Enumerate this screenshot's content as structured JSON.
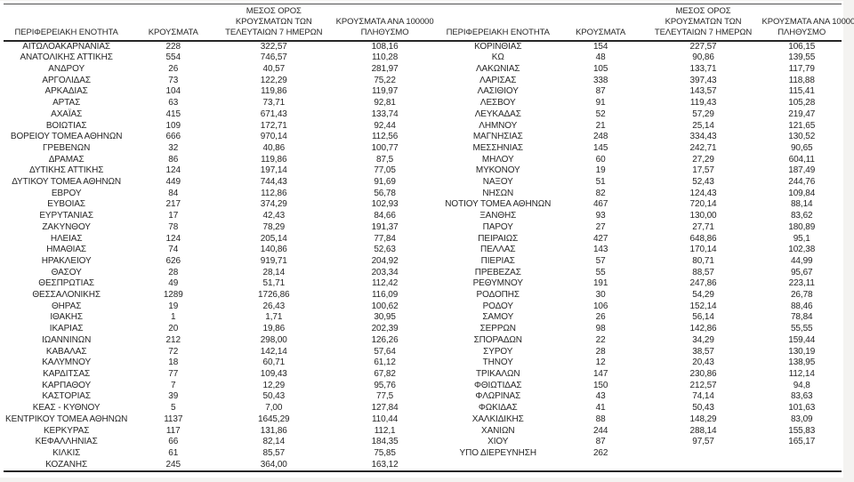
{
  "page": {
    "background_color": "#f4f3f1",
    "panel_color": "#ffffff",
    "rule_color": "#262626",
    "top_rule_color": "#4f4f4f",
    "text_color": "#262626"
  },
  "table": {
    "headers": {
      "region": "ΠΕΡΙΦΕΡΕΙΑΚΗ ΕΝΟΤΗΤΑ",
      "cases": "ΚΡΟΥΣΜΑΤΑ",
      "avg7_lines": [
        "ΜΕΣΟΣ ΟΡΟΣ",
        "ΚΡΟΥΣΜΑΤΩΝ ΤΩΝ",
        "ΤΕΛΕΥΤΑΙΩΝ 7 ΗΜΕΡΩΝ"
      ],
      "per100k_lines": [
        "ΚΡΟΥΣΜΑΤΑ ΑΝΑ 100000",
        "ΠΛΗΘΥΣΜΟ"
      ]
    },
    "left_rows": [
      [
        "ΑΙΤΩΛΟΑΚΑΡΝΑΝΙΑΣ",
        "228",
        "322,57",
        "108,16"
      ],
      [
        "ΑΝΑΤΟΛΙΚΗΣ ΑΤΤΙΚΗΣ",
        "554",
        "746,57",
        "110,28"
      ],
      [
        "ΑΝΔΡΟΥ",
        "26",
        "40,57",
        "281,97"
      ],
      [
        "ΑΡΓΟΛΙΔΑΣ",
        "73",
        "122,29",
        "75,22"
      ],
      [
        "ΑΡΚΑΔΙΑΣ",
        "104",
        "119,86",
        "119,97"
      ],
      [
        "ΑΡΤΑΣ",
        "63",
        "73,71",
        "92,81"
      ],
      [
        "ΑΧΑΪΑΣ",
        "415",
        "671,43",
        "133,74"
      ],
      [
        "ΒΟΙΩΤΙΑΣ",
        "109",
        "172,71",
        "92,44"
      ],
      [
        "ΒΟΡΕΙΟΥ ΤΟΜΕΑ ΑΘΗΝΩΝ",
        "666",
        "970,14",
        "112,56"
      ],
      [
        "ΓΡΕΒΕΝΩΝ",
        "32",
        "40,86",
        "100,77"
      ],
      [
        "ΔΡΑΜΑΣ",
        "86",
        "119,86",
        "87,5"
      ],
      [
        "ΔΥΤΙΚΗΣ ΑΤΤΙΚΗΣ",
        "124",
        "197,14",
        "77,05"
      ],
      [
        "ΔΥΤΙΚΟΥ ΤΟΜΕΑ ΑΘΗΝΩΝ",
        "449",
        "744,43",
        "91,69"
      ],
      [
        "ΕΒΡΟΥ",
        "84",
        "112,86",
        "56,78"
      ],
      [
        "ΕΥΒΟΙΑΣ",
        "217",
        "374,29",
        "102,93"
      ],
      [
        "ΕΥΡΥΤΑΝΙΑΣ",
        "17",
        "42,43",
        "84,66"
      ],
      [
        "ΖΑΚΥΝΘΟΥ",
        "78",
        "78,29",
        "191,37"
      ],
      [
        "ΗΛΕΙΑΣ",
        "124",
        "205,14",
        "77,84"
      ],
      [
        "ΗΜΑΘΙΑΣ",
        "74",
        "140,86",
        "52,63"
      ],
      [
        "ΗΡΑΚΛΕΙΟΥ",
        "626",
        "919,71",
        "204,92"
      ],
      [
        "ΘΑΣΟΥ",
        "28",
        "28,14",
        "203,34"
      ],
      [
        "ΘΕΣΠΡΩΤΙΑΣ",
        "49",
        "51,71",
        "112,42"
      ],
      [
        "ΘΕΣΣΑΛΟΝΙΚΗΣ",
        "1289",
        "1726,86",
        "116,09"
      ],
      [
        "ΘΗΡΑΣ",
        "19",
        "26,43",
        "100,62"
      ],
      [
        "ΙΘΑΚΗΣ",
        "1",
        "1,71",
        "30,95"
      ],
      [
        "ΙΚΑΡΙΑΣ",
        "20",
        "19,86",
        "202,39"
      ],
      [
        "ΙΩΑΝΝΙΝΩΝ",
        "212",
        "298,00",
        "126,26"
      ],
      [
        "ΚΑΒΑΛΑΣ",
        "72",
        "142,14",
        "57,64"
      ],
      [
        "ΚΑΛΥΜΝΟΥ",
        "18",
        "60,71",
        "61,12"
      ],
      [
        "ΚΑΡΔΙΤΣΑΣ",
        "77",
        "109,43",
        "67,82"
      ],
      [
        "ΚΑΡΠΑΘΟΥ",
        "7",
        "12,29",
        "95,76"
      ],
      [
        "ΚΑΣΤΟΡΙΑΣ",
        "39",
        "50,43",
        "77,5"
      ],
      [
        "ΚΕΑΣ - ΚΥΘΝΟΥ",
        "5",
        "7,00",
        "127,84"
      ],
      [
        "ΚΕΝΤΡΙΚΟΥ ΤΟΜΕΑ ΑΘΗΝΩΝ",
        "1137",
        "1645,29",
        "110,44"
      ],
      [
        "ΚΕΡΚΥΡΑΣ",
        "117",
        "131,86",
        "112,1"
      ],
      [
        "ΚΕΦΑΛΛΗΝΙΑΣ",
        "66",
        "82,14",
        "184,35"
      ],
      [
        "ΚΙΛΚΙΣ",
        "61",
        "85,57",
        "75,85"
      ],
      [
        "ΚΟΖΑΝΗΣ",
        "245",
        "364,00",
        "163,12"
      ]
    ],
    "right_rows": [
      [
        "ΚΟΡΙΝΘΙΑΣ",
        "154",
        "227,57",
        "106,15"
      ],
      [
        "ΚΩ",
        "48",
        "90,86",
        "139,55"
      ],
      [
        "ΛΑΚΩΝΙΑΣ",
        "105",
        "133,71",
        "117,79"
      ],
      [
        "ΛΑΡΙΣΑΣ",
        "338",
        "397,43",
        "118,88"
      ],
      [
        "ΛΑΣΙΘΙΟΥ",
        "87",
        "143,57",
        "115,41"
      ],
      [
        "ΛΕΣΒΟΥ",
        "91",
        "119,43",
        "105,28"
      ],
      [
        "ΛΕΥΚΑΔΑΣ",
        "52",
        "57,29",
        "219,47"
      ],
      [
        "ΛΗΜΝΟΥ",
        "21",
        "25,14",
        "121,65"
      ],
      [
        "ΜΑΓΝΗΣΙΑΣ",
        "248",
        "334,43",
        "130,52"
      ],
      [
        "ΜΕΣΣΗΝΙΑΣ",
        "145",
        "242,71",
        "90,65"
      ],
      [
        "ΜΗΛΟΥ",
        "60",
        "27,29",
        "604,11"
      ],
      [
        "ΜΥΚΟΝΟΥ",
        "19",
        "17,57",
        "187,49"
      ],
      [
        "ΝΑΞΟΥ",
        "51",
        "52,43",
        "244,76"
      ],
      [
        "ΝΗΣΩΝ",
        "82",
        "124,43",
        "109,84"
      ],
      [
        "ΝΟΤΙΟΥ ΤΟΜΕΑ ΑΘΗΝΩΝ",
        "467",
        "720,14",
        "88,14"
      ],
      [
        "ΞΑΝΘΗΣ",
        "93",
        "130,00",
        "83,62"
      ],
      [
        "ΠΑΡΟΥ",
        "27",
        "27,71",
        "180,89"
      ],
      [
        "ΠΕΙΡΑΙΩΣ",
        "427",
        "648,86",
        "95,1"
      ],
      [
        "ΠΕΛΛΑΣ",
        "143",
        "170,14",
        "102,38"
      ],
      [
        "ΠΙΕΡΙΑΣ",
        "57",
        "80,71",
        "44,99"
      ],
      [
        "ΠΡΕΒΕΖΑΣ",
        "55",
        "88,57",
        "95,67"
      ],
      [
        "ΡΕΘΥΜΝΟΥ",
        "191",
        "247,86",
        "223,11"
      ],
      [
        "ΡΟΔΟΠΗΣ",
        "30",
        "54,29",
        "26,78"
      ],
      [
        "ΡΟΔΟΥ",
        "106",
        "152,14",
        "88,46"
      ],
      [
        "ΣΑΜΟΥ",
        "26",
        "56,14",
        "78,84"
      ],
      [
        "ΣΕΡΡΩΝ",
        "98",
        "142,86",
        "55,55"
      ],
      [
        "ΣΠΟΡΑΔΩΝ",
        "22",
        "34,29",
        "159,44"
      ],
      [
        "ΣΥΡΟΥ",
        "28",
        "38,57",
        "130,19"
      ],
      [
        "ΤΗΝΟΥ",
        "12",
        "20,43",
        "138,95"
      ],
      [
        "ΤΡΙΚΑΛΩΝ",
        "147",
        "230,86",
        "112,14"
      ],
      [
        "ΦΘΙΩΤΙΔΑΣ",
        "150",
        "212,57",
        "94,8"
      ],
      [
        "ΦΛΩΡΙΝΑΣ",
        "43",
        "74,14",
        "83,63"
      ],
      [
        "ΦΩΚΙΔΑΣ",
        "41",
        "50,43",
        "101,63"
      ],
      [
        "ΧΑΛΚΙΔΙΚΗΣ",
        "88",
        "148,29",
        "83,09"
      ],
      [
        "ΧΑΝΙΩΝ",
        "244",
        "288,14",
        "155,83"
      ],
      [
        "ΧΙΟΥ",
        "87",
        "97,57",
        "165,17"
      ],
      [
        "ΥΠΟ ΔΙΕΡΕΥΝΗΣΗ",
        "262",
        "",
        ""
      ]
    ]
  }
}
